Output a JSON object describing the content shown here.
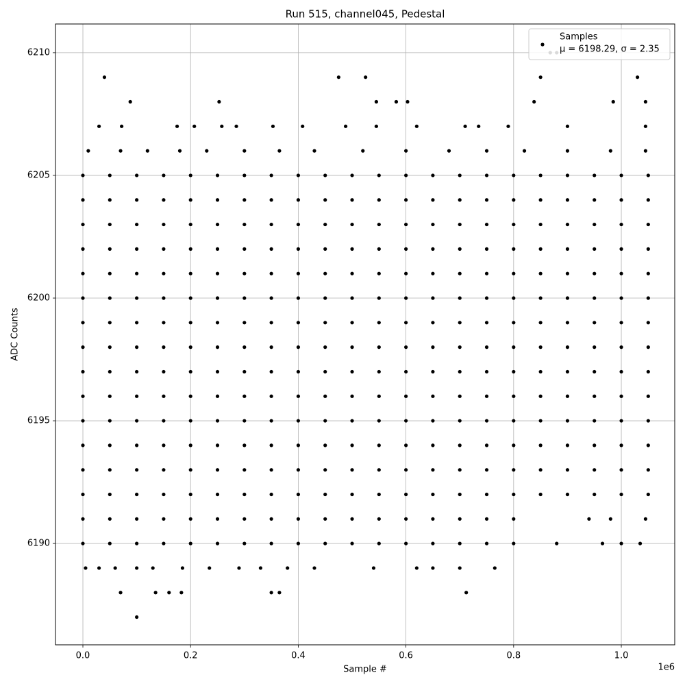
{
  "chart_data": {
    "type": "scatter",
    "title": "Run 515, channel045, Pedestal",
    "x_label": "Sample #",
    "y_label": "ADC Counts",
    "x_offset_label": "1e6",
    "annotation": "μ = 6198.29, σ = 2.35",
    "legend": "upper right",
    "grid": true,
    "xlim": [
      -50900,
      1099200
    ],
    "ylim": [
      6185.87,
      6211.17
    ],
    "xticks": [
      {
        "value": 0,
        "label": "0.0"
      },
      {
        "value": 200000,
        "label": "0.2"
      },
      {
        "value": 400000,
        "label": "0.4"
      },
      {
        "value": 600000,
        "label": "0.6"
      },
      {
        "value": 800000,
        "label": "0.8"
      },
      {
        "value": 1000000,
        "label": "1.0"
      }
    ],
    "yticks": [
      6190,
      6195,
      6200,
      6205,
      6210
    ],
    "series": [
      {
        "name": "Samples",
        "color": "#000000",
        "x": [
          0,
          50000,
          100000,
          150000,
          200000,
          250000,
          300000,
          350000,
          400000,
          450000,
          500000,
          550000,
          600000,
          650000,
          700000,
          750000,
          800000,
          850000,
          900000,
          950000,
          1000000,
          1050000,
          0,
          50000,
          100000,
          150000,
          200000,
          250000,
          300000,
          350000,
          400000,
          450000,
          500000,
          550000,
          600000,
          650000,
          700000,
          750000,
          800000,
          850000,
          900000,
          950000,
          1000000,
          1050000,
          0,
          50000,
          100000,
          150000,
          200000,
          250000,
          300000,
          350000,
          400000,
          450000,
          500000,
          550000,
          600000,
          650000,
          700000,
          750000,
          800000,
          850000,
          900000,
          950000,
          1000000,
          1050000,
          0,
          50000,
          100000,
          150000,
          200000,
          250000,
          300000,
          350000,
          400000,
          450000,
          500000,
          550000,
          600000,
          650000,
          700000,
          750000,
          800000,
          850000,
          900000,
          950000,
          1000000,
          1050000,
          0,
          50000,
          100000,
          150000,
          200000,
          250000,
          300000,
          350000,
          400000,
          450000,
          500000,
          550000,
          600000,
          650000,
          700000,
          750000,
          800000,
          850000,
          900000,
          950000,
          1000000,
          1050000,
          0,
          50000,
          100000,
          150000,
          200000,
          250000,
          300000,
          350000,
          400000,
          450000,
          500000,
          550000,
          600000,
          650000,
          700000,
          750000,
          800000,
          850000,
          900000,
          950000,
          1000000,
          1050000,
          0,
          50000,
          100000,
          150000,
          200000,
          250000,
          300000,
          350000,
          400000,
          450000,
          500000,
          550000,
          600000,
          650000,
          700000,
          750000,
          800000,
          850000,
          900000,
          950000,
          1000000,
          1050000,
          0,
          50000,
          100000,
          150000,
          200000,
          250000,
          300000,
          350000,
          400000,
          450000,
          500000,
          550000,
          600000,
          650000,
          700000,
          750000,
          800000,
          850000,
          900000,
          950000,
          1000000,
          1050000,
          0,
          50000,
          100000,
          150000,
          200000,
          250000,
          300000,
          350000,
          400000,
          450000,
          500000,
          550000,
          600000,
          650000,
          700000,
          750000,
          800000,
          850000,
          900000,
          950000,
          1000000,
          1050000,
          0,
          50000,
          100000,
          150000,
          200000,
          250000,
          300000,
          350000,
          400000,
          450000,
          500000,
          550000,
          600000,
          650000,
          700000,
          750000,
          800000,
          850000,
          900000,
          950000,
          1000000,
          1050000,
          0,
          50000,
          100000,
          150000,
          200000,
          250000,
          300000,
          350000,
          400000,
          450000,
          500000,
          550000,
          600000,
          650000,
          700000,
          750000,
          800000,
          850000,
          900000,
          950000,
          1000000,
          1050000,
          0,
          50000,
          100000,
          150000,
          200000,
          250000,
          300000,
          350000,
          400000,
          450000,
          500000,
          550000,
          600000,
          650000,
          700000,
          750000,
          800000,
          850000,
          900000,
          950000,
          1000000,
          1050000,
          0,
          50000,
          100000,
          150000,
          200000,
          250000,
          300000,
          350000,
          400000,
          450000,
          500000,
          550000,
          600000,
          650000,
          700000,
          750000,
          800000,
          850000,
          900000,
          950000,
          1000000,
          1050000,
          0,
          50000,
          100000,
          150000,
          200000,
          250000,
          300000,
          350000,
          400000,
          450000,
          500000,
          550000,
          600000,
          650000,
          700000,
          750000,
          800000,
          850000,
          900000,
          950000,
          1000000,
          1050000,
          0,
          50000,
          100000,
          150000,
          200000,
          250000,
          300000,
          350000,
          400000,
          450000,
          500000,
          550000,
          600000,
          650000,
          700000,
          750000,
          800000,
          940000,
          980000,
          1045000,
          0,
          50000,
          100000,
          150000,
          200000,
          250000,
          300000,
          350000,
          400000,
          450000,
          500000,
          550000,
          600000,
          650000,
          700000,
          750000,
          800000,
          880000,
          965000,
          1000000,
          1035000,
          5000,
          30000,
          60000,
          100000,
          130000,
          185000,
          235000,
          290000,
          330000,
          380000,
          430000,
          540000,
          620000,
          650000,
          700000,
          765000,
          70000,
          135000,
          160000,
          183000,
          350000,
          365000,
          712000,
          100000,
          10000,
          70000,
          120000,
          180000,
          230000,
          300000,
          365000,
          430000,
          520000,
          600000,
          680000,
          750000,
          820000,
          900000,
          980000,
          1045000,
          30000,
          72000,
          175000,
          207000,
          258000,
          285000,
          353000,
          408000,
          488000,
          545000,
          620000,
          710000,
          735000,
          790000,
          900000,
          1045000,
          88000,
          253000,
          545000,
          582000,
          603000,
          838000,
          985000,
          1045000,
          40000,
          475000,
          525000,
          850000,
          1030000,
          868000,
          880000
        ],
        "values": [
          6192,
          6192,
          6192,
          6192,
          6192,
          6192,
          6192,
          6192,
          6192,
          6192,
          6192,
          6192,
          6192,
          6192,
          6192,
          6192,
          6192,
          6192,
          6192,
          6192,
          6192,
          6192,
          6193,
          6193,
          6193,
          6193,
          6193,
          6193,
          6193,
          6193,
          6193,
          6193,
          6193,
          6193,
          6193,
          6193,
          6193,
          6193,
          6193,
          6193,
          6193,
          6193,
          6193,
          6193,
          6194,
          6194,
          6194,
          6194,
          6194,
          6194,
          6194,
          6194,
          6194,
          6194,
          6194,
          6194,
          6194,
          6194,
          6194,
          6194,
          6194,
          6194,
          6194,
          6194,
          6194,
          6194,
          6195,
          6195,
          6195,
          6195,
          6195,
          6195,
          6195,
          6195,
          6195,
          6195,
          6195,
          6195,
          6195,
          6195,
          6195,
          6195,
          6195,
          6195,
          6195,
          6195,
          6195,
          6195,
          6196,
          6196,
          6196,
          6196,
          6196,
          6196,
          6196,
          6196,
          6196,
          6196,
          6196,
          6196,
          6196,
          6196,
          6196,
          6196,
          6196,
          6196,
          6196,
          6196,
          6196,
          6196,
          6197,
          6197,
          6197,
          6197,
          6197,
          6197,
          6197,
          6197,
          6197,
          6197,
          6197,
          6197,
          6197,
          6197,
          6197,
          6197,
          6197,
          6197,
          6197,
          6197,
          6197,
          6197,
          6198,
          6198,
          6198,
          6198,
          6198,
          6198,
          6198,
          6198,
          6198,
          6198,
          6198,
          6198,
          6198,
          6198,
          6198,
          6198,
          6198,
          6198,
          6198,
          6198,
          6198,
          6198,
          6199,
          6199,
          6199,
          6199,
          6199,
          6199,
          6199,
          6199,
          6199,
          6199,
          6199,
          6199,
          6199,
          6199,
          6199,
          6199,
          6199,
          6199,
          6199,
          6199,
          6199,
          6199,
          6200,
          6200,
          6200,
          6200,
          6200,
          6200,
          6200,
          6200,
          6200,
          6200,
          6200,
          6200,
          6200,
          6200,
          6200,
          6200,
          6200,
          6200,
          6200,
          6200,
          6200,
          6200,
          6201,
          6201,
          6201,
          6201,
          6201,
          6201,
          6201,
          6201,
          6201,
          6201,
          6201,
          6201,
          6201,
          6201,
          6201,
          6201,
          6201,
          6201,
          6201,
          6201,
          6201,
          6201,
          6202,
          6202,
          6202,
          6202,
          6202,
          6202,
          6202,
          6202,
          6202,
          6202,
          6202,
          6202,
          6202,
          6202,
          6202,
          6202,
          6202,
          6202,
          6202,
          6202,
          6202,
          6202,
          6203,
          6203,
          6203,
          6203,
          6203,
          6203,
          6203,
          6203,
          6203,
          6203,
          6203,
          6203,
          6203,
          6203,
          6203,
          6203,
          6203,
          6203,
          6203,
          6203,
          6203,
          6203,
          6204,
          6204,
          6204,
          6204,
          6204,
          6204,
          6204,
          6204,
          6204,
          6204,
          6204,
          6204,
          6204,
          6204,
          6204,
          6204,
          6204,
          6204,
          6204,
          6204,
          6204,
          6204,
          6205,
          6205,
          6205,
          6205,
          6205,
          6205,
          6205,
          6205,
          6205,
          6205,
          6205,
          6205,
          6205,
          6205,
          6205,
          6205,
          6205,
          6205,
          6205,
          6205,
          6205,
          6205,
          6191,
          6191,
          6191,
          6191,
          6191,
          6191,
          6191,
          6191,
          6191,
          6191,
          6191,
          6191,
          6191,
          6191,
          6191,
          6191,
          6191,
          6191,
          6191,
          6191,
          6190,
          6190,
          6190,
          6190,
          6190,
          6190,
          6190,
          6190,
          6190,
          6190,
          6190,
          6190,
          6190,
          6190,
          6190,
          6190,
          6190,
          6190,
          6190,
          6190,
          6190,
          6189,
          6189,
          6189,
          6189,
          6189,
          6189,
          6189,
          6189,
          6189,
          6189,
          6189,
          6189,
          6189,
          6189,
          6189,
          6189,
          6188,
          6188,
          6188,
          6188,
          6188,
          6188,
          6188,
          6187,
          6206,
          6206,
          6206,
          6206,
          6206,
          6206,
          6206,
          6206,
          6206,
          6206,
          6206,
          6206,
          6206,
          6206,
          6206,
          6206,
          6207,
          6207,
          6207,
          6207,
          6207,
          6207,
          6207,
          6207,
          6207,
          6207,
          6207,
          6207,
          6207,
          6207,
          6207,
          6207,
          6208,
          6208,
          6208,
          6208,
          6208,
          6208,
          6208,
          6208,
          6209,
          6209,
          6209,
          6209,
          6209,
          6210,
          6210
        ]
      }
    ]
  }
}
